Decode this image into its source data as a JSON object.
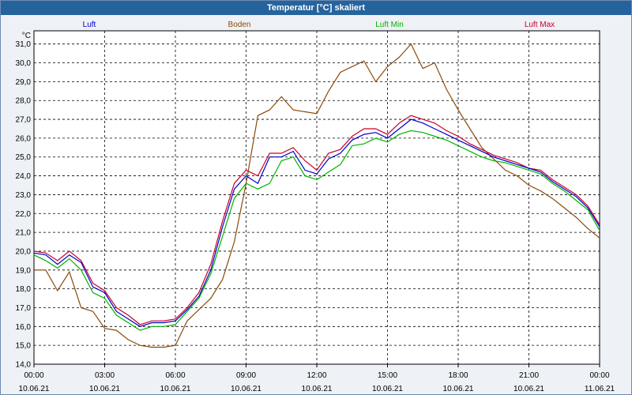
{
  "window": {
    "title": "Temperatur [°C] skaliert"
  },
  "chart_data": {
    "type": "line",
    "title": "Temperatur [°C] skaliert",
    "ylabel": "°C",
    "xlabel": "",
    "ylim": [
      14.0,
      31.7
    ],
    "xlim": [
      0,
      24
    ],
    "grid": true,
    "y_ticks": [
      "14,0",
      "15,0",
      "16,0",
      "17,0",
      "18,0",
      "19,0",
      "20,0",
      "21,0",
      "22,0",
      "23,0",
      "24,0",
      "25,0",
      "26,0",
      "27,0",
      "28,0",
      "29,0",
      "30,0",
      "31,0"
    ],
    "x_ticks": [
      {
        "time": "00:00",
        "date": "10.06.21"
      },
      {
        "time": "03:00",
        "date": "10.06.21"
      },
      {
        "time": "06:00",
        "date": "10.06.21"
      },
      {
        "time": "09:00",
        "date": "10.06.21"
      },
      {
        "time": "12:00",
        "date": "10.06.21"
      },
      {
        "time": "15:00",
        "date": "10.06.21"
      },
      {
        "time": "18:00",
        "date": "10.06.21"
      },
      {
        "time": "21:00",
        "date": "10.06.21"
      },
      {
        "time": "00:00",
        "date": "11.06.21"
      }
    ],
    "series": [
      {
        "name": "Luft",
        "color": "#0000c8",
        "x": [
          0,
          0.5,
          1,
          1.5,
          2,
          2.5,
          3,
          3.5,
          4,
          4.5,
          5,
          5.5,
          6,
          6.5,
          7,
          7.5,
          8,
          8.5,
          9,
          9.5,
          10,
          10.5,
          11,
          11.5,
          12,
          12.5,
          13,
          13.5,
          14,
          14.5,
          15,
          15.5,
          16,
          16.5,
          17,
          17.5,
          18,
          18.5,
          19,
          19.5,
          20,
          20.5,
          21,
          21.5,
          22,
          22.5,
          23,
          23.5,
          24
        ],
        "values": [
          19.9,
          19.8,
          19.3,
          19.8,
          19.4,
          18.1,
          17.8,
          16.8,
          16.4,
          16.0,
          16.2,
          16.2,
          16.3,
          16.9,
          17.6,
          19.0,
          21.3,
          23.3,
          24.0,
          23.6,
          25.0,
          25.0,
          25.3,
          24.3,
          24.1,
          24.9,
          25.2,
          25.9,
          26.2,
          26.3,
          26.0,
          26.5,
          27.0,
          26.8,
          26.5,
          26.2,
          25.9,
          25.6,
          25.3,
          25.0,
          24.8,
          24.6,
          24.4,
          24.2,
          23.7,
          23.3,
          22.9,
          22.3,
          21.3
        ]
      },
      {
        "name": "Boden",
        "color": "#8b4a0a",
        "x": [
          0,
          0.5,
          1,
          1.5,
          2,
          2.5,
          3,
          3.5,
          4,
          4.5,
          5,
          5.5,
          6,
          6.5,
          7,
          7.5,
          8,
          8.5,
          9,
          9.5,
          10,
          10.5,
          11,
          11.5,
          12,
          12.5,
          13,
          13.5,
          14,
          14.5,
          15,
          15.5,
          16,
          16.5,
          17,
          17.5,
          18,
          18.5,
          19,
          19.5,
          20,
          20.5,
          21,
          21.5,
          22,
          22.5,
          23,
          23.5,
          24
        ],
        "values": [
          19.0,
          19.0,
          17.9,
          18.9,
          17.0,
          16.8,
          15.9,
          15.8,
          15.3,
          15.0,
          14.9,
          14.9,
          15.0,
          16.3,
          16.9,
          17.5,
          18.5,
          20.5,
          23.6,
          27.2,
          27.5,
          28.2,
          27.5,
          27.4,
          27.3,
          28.5,
          29.5,
          29.8,
          30.1,
          29.0,
          29.8,
          30.3,
          31.0,
          29.7,
          30.0,
          28.6,
          27.5,
          26.5,
          25.5,
          24.9,
          24.3,
          24.0,
          23.5,
          23.2,
          22.8,
          22.3,
          21.8,
          21.2,
          20.7
        ]
      },
      {
        "name": "Luft Min",
        "color": "#00b400",
        "x": [
          0,
          0.5,
          1,
          1.5,
          2,
          2.5,
          3,
          3.5,
          4,
          4.5,
          5,
          5.5,
          6,
          6.5,
          7,
          7.5,
          8,
          8.5,
          9,
          9.5,
          10,
          10.5,
          11,
          11.5,
          12,
          12.5,
          13,
          13.5,
          14,
          14.5,
          15,
          15.5,
          16,
          16.5,
          17,
          17.5,
          18,
          18.5,
          19,
          19.5,
          20,
          20.5,
          21,
          21.5,
          22,
          22.5,
          23,
          23.5,
          24
        ],
        "values": [
          19.8,
          19.5,
          19.1,
          19.6,
          19.0,
          17.8,
          17.5,
          16.6,
          16.2,
          15.8,
          16.0,
          16.0,
          16.1,
          16.8,
          17.5,
          18.8,
          20.8,
          22.8,
          23.6,
          23.3,
          23.6,
          24.8,
          25.0,
          24.0,
          23.8,
          24.2,
          24.6,
          25.6,
          25.7,
          26.0,
          25.8,
          26.2,
          26.4,
          26.3,
          26.1,
          25.9,
          25.6,
          25.3,
          25.0,
          24.8,
          24.7,
          24.5,
          24.3,
          24.1,
          23.6,
          23.2,
          22.7,
          22.2,
          21.1
        ]
      },
      {
        "name": "Luft Max",
        "color": "#c8002a",
        "x": [
          0,
          0.5,
          1,
          1.5,
          2,
          2.5,
          3,
          3.5,
          4,
          4.5,
          5,
          5.5,
          6,
          6.5,
          7,
          7.5,
          8,
          8.5,
          9,
          9.5,
          10,
          10.5,
          11,
          11.5,
          12,
          12.5,
          13,
          13.5,
          14,
          14.5,
          15,
          15.5,
          16,
          16.5,
          17,
          17.5,
          18,
          18.5,
          19,
          19.5,
          20,
          20.5,
          21,
          21.5,
          22,
          22.5,
          23,
          23.5,
          24
        ],
        "values": [
          20.0,
          19.9,
          19.5,
          20.0,
          19.5,
          18.3,
          17.9,
          17.0,
          16.6,
          16.1,
          16.3,
          16.3,
          16.4,
          17.0,
          17.8,
          19.3,
          21.6,
          23.6,
          24.3,
          24.0,
          25.2,
          25.2,
          25.5,
          24.8,
          24.3,
          25.2,
          25.4,
          26.1,
          26.5,
          26.5,
          26.2,
          26.8,
          27.2,
          27.0,
          26.8,
          26.4,
          26.1,
          25.7,
          25.4,
          25.1,
          24.9,
          24.7,
          24.4,
          24.3,
          23.8,
          23.4,
          23.0,
          22.4,
          21.4
        ]
      }
    ]
  }
}
